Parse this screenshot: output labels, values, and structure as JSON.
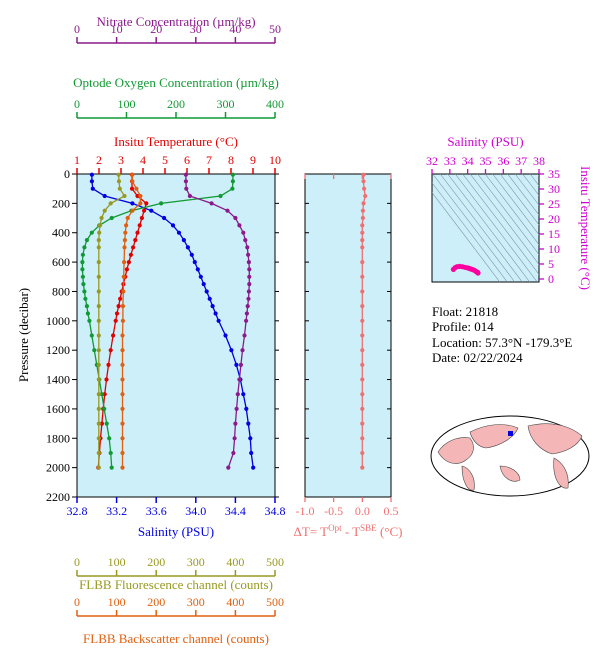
{
  "colors": {
    "temperature": "#e00000",
    "salinity": "#0000e0",
    "nitrate": "#8b1a8b",
    "oxygen": "#119933",
    "fluorescence": "#999922",
    "backscatter": "#e06010",
    "delta": "#f07070",
    "salinity_panel": "#d000d0",
    "plot_bg": "#cdeffa"
  },
  "info": {
    "float": "Float:  21818",
    "profile": "Profile:  014",
    "location": "Location:  57.3°N  -179.3°E",
    "date": "Date:  02/22/2024"
  },
  "chart_data": [
    {
      "type": "line",
      "panel": "main-profile",
      "ylabel": "Pressure (decibar)",
      "ylim": [
        2200,
        0
      ],
      "yticks": [
        0,
        200,
        400,
        600,
        800,
        1000,
        1200,
        1400,
        1600,
        1800,
        2000,
        2200
      ],
      "axes": [
        {
          "id": "nitrate",
          "label": "Nitrate Concentration (µm/kg)",
          "ticks": [
            0,
            10,
            20,
            30,
            40,
            50
          ],
          "lim": [
            0,
            50
          ]
        },
        {
          "id": "oxygen",
          "label": "Optode Oxygen Concentration (µm/kg)",
          "ticks": [
            0,
            100,
            200,
            300,
            400
          ],
          "lim": [
            0,
            400
          ]
        },
        {
          "id": "temperature",
          "label": "Insitu Temperature (°C)",
          "ticks": [
            1,
            2,
            3,
            4,
            5,
            6,
            7,
            8,
            9,
            10
          ],
          "lim": [
            1,
            10
          ]
        },
        {
          "id": "salinity",
          "label": "Salinity (PSU)",
          "ticks": [
            "32.8",
            "33.2",
            "33.6",
            "34.0",
            "34.4",
            "34.8"
          ],
          "lim": [
            32.8,
            34.8
          ]
        },
        {
          "id": "fluorescence",
          "label": "FLBB Fluorescence channel (counts)",
          "ticks": [
            0,
            100,
            200,
            300,
            400,
            500
          ],
          "lim": [
            0,
            500
          ]
        },
        {
          "id": "backscatter",
          "label": "FLBB Backscatter channel (counts)",
          "ticks": [
            0,
            100,
            200,
            300,
            400,
            500
          ],
          "lim": [
            0,
            500
          ]
        }
      ],
      "series": [
        {
          "axis": "salinity",
          "pressure": [
            5,
            50,
            100,
            150,
            200,
            250,
            300,
            350,
            400,
            450,
            500,
            550,
            600,
            650,
            700,
            750,
            800,
            850,
            900,
            950,
            1000,
            1100,
            1200,
            1300,
            1400,
            1500,
            1600,
            1700,
            1800,
            1900,
            2000
          ],
          "values": [
            32.95,
            32.95,
            32.96,
            33.08,
            33.36,
            33.55,
            33.68,
            33.77,
            33.83,
            33.88,
            33.92,
            33.96,
            33.99,
            34.02,
            34.05,
            34.08,
            34.11,
            34.14,
            34.17,
            34.2,
            34.23,
            34.3,
            34.36,
            34.41,
            34.45,
            34.48,
            34.51,
            34.53,
            34.55,
            34.56,
            34.58
          ]
        },
        {
          "axis": "temperature",
          "pressure": [
            5,
            50,
            100,
            150,
            200,
            250,
            300,
            350,
            400,
            450,
            500,
            550,
            600,
            650,
            700,
            750,
            800,
            850,
            900,
            950,
            1000,
            1100,
            1200,
            1300,
            1400,
            1500,
            1600,
            1700,
            1800,
            1900,
            2000
          ],
          "values": [
            3.5,
            3.5,
            3.5,
            3.75,
            4.15,
            4.05,
            3.95,
            3.85,
            3.75,
            3.65,
            3.55,
            3.45,
            3.36,
            3.27,
            3.19,
            3.11,
            3.03,
            2.96,
            2.89,
            2.82,
            2.76,
            2.64,
            2.53,
            2.43,
            2.34,
            2.26,
            2.19,
            2.13,
            2.07,
            2.02,
            1.97
          ]
        },
        {
          "axis": "oxygen",
          "pressure": [
            5,
            50,
            100,
            150,
            200,
            250,
            300,
            350,
            400,
            450,
            500,
            550,
            600,
            650,
            700,
            750,
            800,
            850,
            900,
            950,
            1000,
            1100,
            1200,
            1300,
            1400,
            1500,
            1600,
            1700,
            1800,
            1900,
            2000
          ],
          "values": [
            315,
            315,
            314,
            290,
            170,
            110,
            70,
            45,
            30,
            20,
            15,
            12,
            11,
            11,
            12,
            13,
            15,
            17,
            20,
            22,
            25,
            30,
            35,
            40,
            45,
            50,
            55,
            60,
            65,
            68,
            70
          ]
        },
        {
          "axis": "nitrate",
          "pressure": [
            5,
            50,
            100,
            150,
            200,
            250,
            300,
            350,
            400,
            450,
            500,
            550,
            600,
            650,
            700,
            750,
            800,
            850,
            900,
            950,
            1000,
            1100,
            1200,
            1300,
            1400,
            1500,
            1600,
            1700,
            1800,
            1900,
            2000
          ],
          "values": [
            27.5,
            27.5,
            27.6,
            28.5,
            34,
            38,
            40,
            41,
            42,
            42.5,
            43,
            43.2,
            43.4,
            43.5,
            43.5,
            43.5,
            43.4,
            43.3,
            43.1,
            42.9,
            42.7,
            42.3,
            41.8,
            41.4,
            41,
            40.6,
            40.3,
            40,
            39.8,
            39.5,
            38.2
          ]
        },
        {
          "axis": "fluorescence",
          "pressure": [
            5,
            50,
            100,
            150,
            200,
            250,
            300,
            350,
            400,
            450,
            500,
            600,
            700,
            800,
            900,
            1000,
            1100,
            1200,
            1300,
            1400,
            1500,
            1600,
            1700,
            1800,
            1900,
            2000
          ],
          "values": [
            105,
            106,
            108,
            120,
            85,
            70,
            62,
            58,
            56,
            55,
            55,
            55,
            55,
            55,
            55,
            55,
            55,
            55,
            55,
            55,
            55,
            55,
            55,
            55,
            55,
            55
          ]
        },
        {
          "axis": "backscatter",
          "pressure": [
            5,
            50,
            100,
            150,
            200,
            250,
            300,
            350,
            400,
            450,
            500,
            600,
            700,
            800,
            900,
            1000,
            1100,
            1200,
            1300,
            1400,
            1500,
            1600,
            1700,
            1800,
            1900,
            2000
          ],
          "values": [
            140,
            140,
            150,
            160,
            160,
            140,
            128,
            124,
            122,
            121,
            120,
            119,
            118,
            117,
            116,
            116,
            115,
            115,
            115,
            115,
            115,
            115,
            115,
            115,
            115,
            115
          ]
        }
      ]
    },
    {
      "type": "scatter",
      "panel": "delta-t",
      "xlabel": "ΔT= Tᴼᵖᵗ - Tˢᴮᴱ (°C)",
      "xlabel_main": "ΔT= T",
      "xlabel_sup1": "Opt",
      "xlabel_mid": " - T",
      "xlabel_sup2": "SBE",
      "xlabel_end": " (°C)",
      "xticks": [
        "-1.0",
        "-0.5",
        "0.0",
        "0.5"
      ],
      "xlim": [
        -1.0,
        0.5
      ],
      "ylim": [
        2200,
        0
      ],
      "pressure": [
        5,
        50,
        100,
        150,
        200,
        250,
        300,
        350,
        400,
        450,
        500,
        600,
        700,
        800,
        900,
        1000,
        1100,
        1200,
        1300,
        1400,
        1500,
        1600,
        1700,
        1800,
        1900,
        2000
      ],
      "values": [
        0.02,
        0.02,
        0.03,
        0.05,
        0.02,
        0.01,
        0.01,
        0.0,
        0.0,
        0.0,
        0.0,
        0.0,
        0.0,
        0.0,
        0.0,
        0.0,
        0.0,
        0.0,
        0.0,
        0.0,
        0.0,
        0.0,
        0.0,
        0.0,
        0.0,
        0.0
      ]
    },
    {
      "type": "scatter",
      "panel": "ts-diagram",
      "title": "Salinity (PSU)",
      "ylabel": "Insitu Temperature (°C)",
      "xticks": [
        32,
        33,
        34,
        35,
        36,
        37,
        38
      ],
      "yticks": [
        0,
        5,
        10,
        15,
        20,
        25,
        30,
        35
      ],
      "xlim": [
        32,
        38
      ],
      "ylim": [
        -1,
        35
      ],
      "salinity": [
        33.2,
        33.3,
        33.4,
        33.55,
        33.7,
        33.85,
        34.0,
        34.1,
        34.2,
        34.3,
        34.38,
        34.45,
        34.5,
        34.55,
        34.58
      ],
      "temperature": [
        3.2,
        3.8,
        4.1,
        4.2,
        4.1,
        3.9,
        3.7,
        3.5,
        3.3,
        3.1,
        2.9,
        2.6,
        2.4,
        2.2,
        2.0
      ]
    }
  ]
}
